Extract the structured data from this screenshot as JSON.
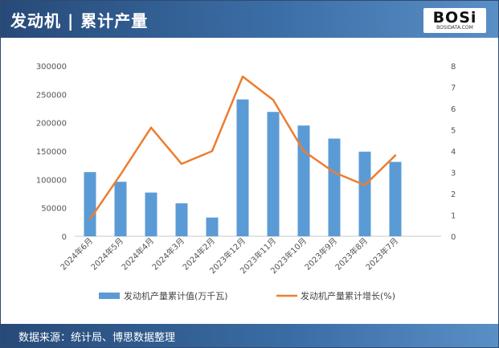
{
  "header": {
    "title": "发动机 | 累计产量"
  },
  "logo": {
    "text": "BOSi",
    "sub": "BOSIDATA.COM"
  },
  "footer": {
    "source": "数据来源：统计局、博思数据整理"
  },
  "colors": {
    "bar": "#5b9bd5",
    "line": "#ed7d31",
    "header": "#2f5a8e"
  },
  "chart_data": {
    "type": "bar",
    "categories": [
      "2024年6月",
      "2024年5月",
      "2024年4月",
      "2024年3月",
      "2024年2月",
      "2023年12月",
      "2023年11月",
      "2023年10月",
      "2023年9月",
      "2023年8月",
      "2023年7月"
    ],
    "series": [
      {
        "name": "发动机产量累计值(万千瓦)",
        "type": "bar",
        "axis": "left",
        "values": [
          113000,
          96000,
          77000,
          58000,
          33000,
          241000,
          219000,
          195000,
          172000,
          149000,
          131000
        ]
      },
      {
        "name": "发动机产量累计增长(%)",
        "type": "line",
        "axis": "right",
        "values": [
          0.8,
          2.9,
          5.1,
          3.4,
          4.0,
          7.5,
          6.4,
          4.0,
          3.0,
          2.4,
          3.8
        ]
      }
    ],
    "y_left": {
      "min": 0,
      "max": 300000,
      "ticks": [
        0,
        50000,
        100000,
        150000,
        200000,
        250000,
        300000
      ]
    },
    "y_right": {
      "min": 0,
      "max": 8,
      "ticks": [
        0,
        1,
        2,
        3,
        4,
        5,
        6,
        7,
        8
      ]
    },
    "grid": false,
    "legend": "bottom"
  }
}
